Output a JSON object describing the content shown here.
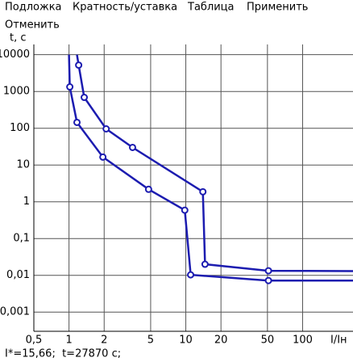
{
  "menu": [
    "Подложка",
    "Кратность/уставка",
    "Таблица",
    "Применить",
    "Отменить"
  ],
  "status": "I*=15,66;  t=27870 c;",
  "chart_data": {
    "type": "line",
    "log_x": true,
    "log_y": true,
    "grid": true,
    "ylabel": "t, c",
    "xlabel": "I/Iн",
    "xlim": [
      0.5,
      270
    ],
    "ylim": [
      19000,
      0.0003
    ],
    "xticks": [
      {
        "value": 0.5,
        "label": "0,5"
      },
      1,
      2,
      5,
      10,
      20,
      50,
      100
    ],
    "yticks": [
      10000,
      1000,
      100,
      10,
      1,
      {
        "value": 0.1,
        "label": "0,1"
      },
      {
        "value": 0.01,
        "label": "0,01"
      },
      {
        "value": 0.001,
        "label": "0,001"
      }
    ],
    "series": [
      {
        "color": "#1c1cb0",
        "x": [
          1.17,
          1.21,
          1.35,
          2.08,
          3.5,
          14,
          14.6,
          51,
          270
        ],
        "values": [
          10000,
          5200,
          690,
          96,
          30,
          1.87,
          0.02,
          0.0133,
          0.013
        ]
      },
      {
        "color": "#1c1cb0",
        "x": [
          1.0,
          1.016,
          1.17,
          1.95,
          4.8,
          9.8,
          11,
          51,
          270
        ],
        "values": [
          10000,
          1330,
          144,
          16.4,
          2.18,
          0.59,
          0.0103,
          0.0072,
          0.0072
        ]
      }
    ]
  }
}
